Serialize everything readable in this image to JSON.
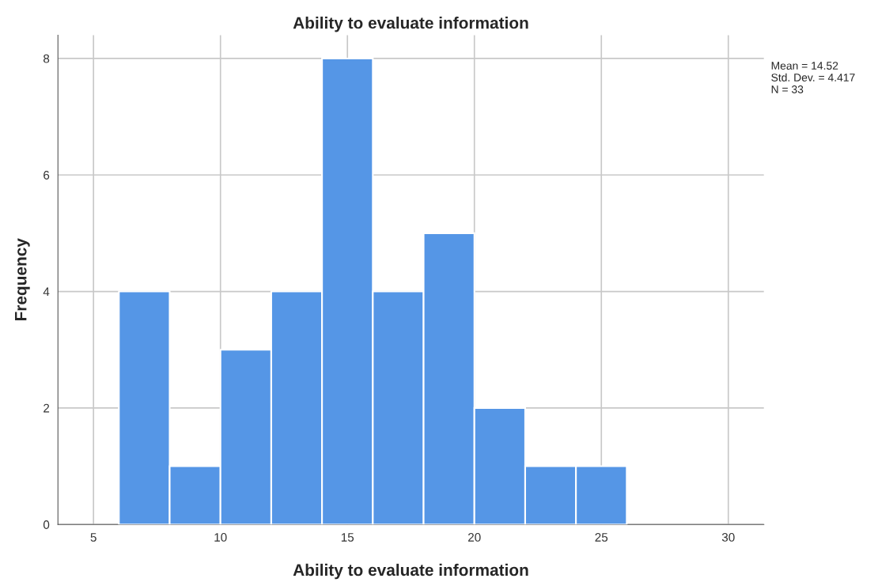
{
  "chart_data": {
    "type": "histogram",
    "title": "Ability to evaluate information",
    "xlabel": "Ability to evaluate information",
    "ylabel": "Frequency",
    "bins": [
      6,
      8,
      10,
      12,
      14,
      16,
      18,
      20,
      22,
      24,
      26
    ],
    "values": [
      4,
      1,
      3,
      4,
      8,
      4,
      5,
      2,
      1,
      1
    ],
    "color": "#5596e6",
    "xlim": [
      3.6,
      31.4
    ],
    "xticks": [
      5,
      10,
      15,
      20,
      25,
      30
    ],
    "ylim": [
      0,
      8.4
    ],
    "yticks": [
      0,
      2,
      4,
      6,
      8
    ],
    "grid": true,
    "legend": false,
    "annotations": [
      "Mean = 14.52\nStd. Dev. = 4.417\nN = 33"
    ]
  }
}
